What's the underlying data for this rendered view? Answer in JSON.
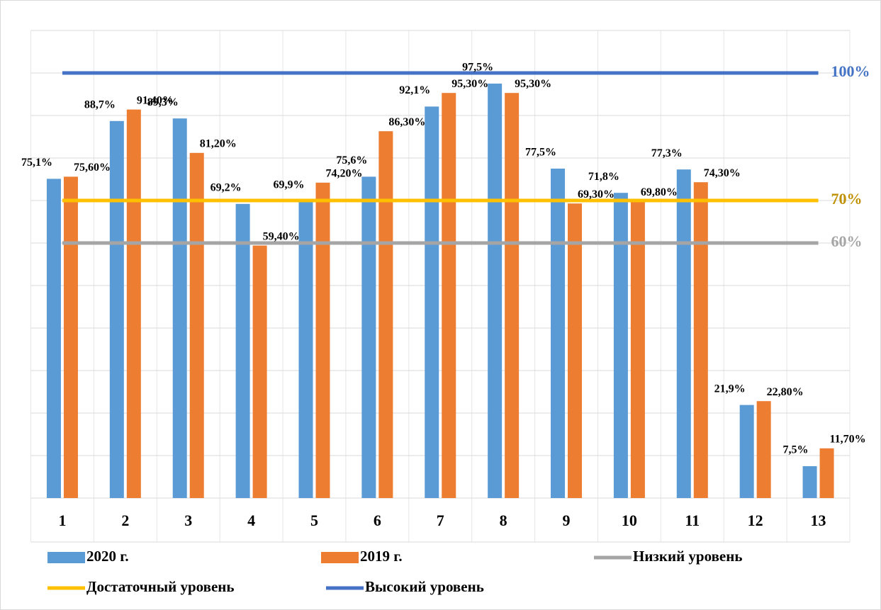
{
  "chart_data": {
    "type": "bar",
    "categories": [
      "1",
      "2",
      "3",
      "4",
      "5",
      "6",
      "7",
      "8",
      "9",
      "10",
      "11",
      "12",
      "13"
    ],
    "series": [
      {
        "name": "2020 г.",
        "type": "bar",
        "color": "#5b9bd5",
        "values": [
          75.1,
          88.7,
          89.3,
          69.2,
          69.9,
          75.6,
          92.1,
          97.5,
          77.5,
          71.8,
          77.3,
          21.9,
          7.5
        ],
        "value_labels": [
          "75,1%",
          "88,7%",
          "89,3%",
          "69,2%",
          "69,9%",
          "75,6%",
          "92,1%",
          "97,5%",
          "77,5%",
          "71,8%",
          "77,3%",
          "21,9%",
          "7,5%"
        ]
      },
      {
        "name": "2019 г.",
        "type": "bar",
        "color": "#ed7d31",
        "values": [
          75.6,
          91.4,
          81.2,
          59.4,
          74.2,
          86.3,
          95.3,
          95.3,
          69.3,
          69.8,
          74.3,
          22.8,
          11.7
        ],
        "value_labels": [
          "75,60%",
          "91,40%",
          "81,20%",
          "59,40%",
          "74,20%",
          "86,30%",
          "95,30%",
          "95,30%",
          "69,30%",
          "69,80%",
          "74,30%",
          "22,80%",
          "11,70%"
        ]
      },
      {
        "name": "Низкий уровень",
        "type": "line",
        "color": "#a5a5a5",
        "label_color": "#a5a5a5",
        "label": "60%",
        "values": [
          60,
          60,
          60,
          60,
          60,
          60,
          60,
          60,
          60,
          60,
          60,
          60,
          60
        ]
      },
      {
        "name": "Достаточный уровень",
        "type": "line",
        "color": "#ffc000",
        "label_color": "#bf9000",
        "label": "70%",
        "values": [
          70,
          70,
          70,
          70,
          70,
          70,
          70,
          70,
          70,
          70,
          70,
          70,
          70
        ]
      },
      {
        "name": "Высокий уровень",
        "type": "line",
        "color": "#4472c4",
        "label_color": "#4472c4",
        "label": "100%",
        "values": [
          100,
          100,
          100,
          100,
          100,
          100,
          100,
          100,
          100,
          100,
          100,
          100,
          100
        ]
      }
    ],
    "ylim": [
      0,
      110
    ],
    "yticks": [
      0,
      10,
      20,
      30,
      40,
      50,
      60,
      70,
      80,
      90,
      100,
      110
    ],
    "grid": true
  }
}
